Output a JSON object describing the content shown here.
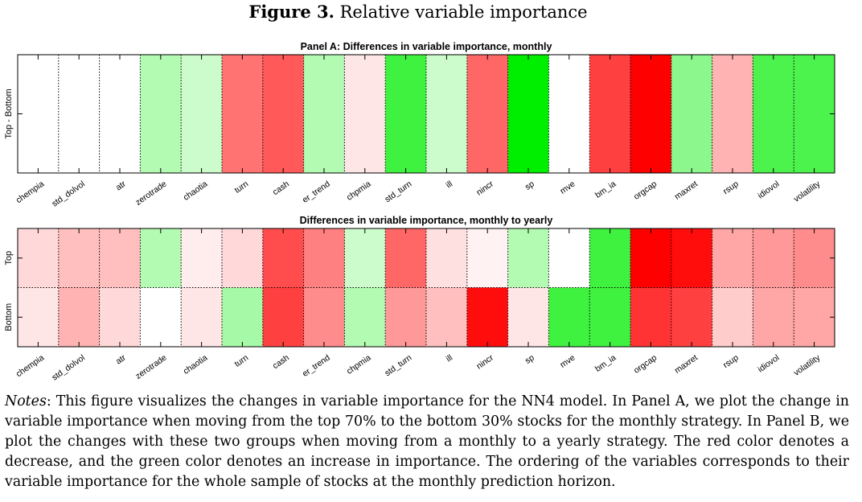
{
  "figure": {
    "label": "Figure 3.",
    "title": "Relative variable importance"
  },
  "notes": {
    "label": "Notes",
    "text": ": This figure visualizes the changes in variable importance for the NN4 model. In Panel A, we plot the change in variable importance when moving from the top 70% to the bottom 30% stocks for the monthly strategy. In Panel B, we plot the changes with these two groups when moving from a monthly to a yearly strategy. The red color denotes a decrease, and the green color denotes an increase in importance. The ordering of the variables corresponds to their variable importance for the whole sample of stocks at the monthly prediction horizon."
  },
  "colors": {
    "decrease": "#ff0000",
    "increase": "#00ee00",
    "neutral": "#ffffff"
  },
  "chart_data": [
    {
      "type": "heatmap",
      "title": "Panel A: Differences in variable importance, monthly",
      "categories": [
        "chempia",
        "std_dolvol",
        "atr",
        "zerotrade",
        "chaotia",
        "turn",
        "cash",
        "er_trend",
        "chpmia",
        "std_turn",
        "ill",
        "nincr",
        "sp",
        "mve",
        "bm_ia",
        "orgcap",
        "maxret",
        "rsup",
        "idiovol",
        "volatility"
      ],
      "rows": [
        "Top - Bottom"
      ],
      "values": [
        [
          0.0,
          0.0,
          0.0,
          0.3,
          0.2,
          -0.55,
          -0.65,
          0.3,
          -0.1,
          0.75,
          0.2,
          -0.6,
          1.0,
          0.0,
          -0.75,
          -1.0,
          0.45,
          -0.3,
          0.7,
          0.7
        ]
      ],
      "value_meaning": "negative = decrease (red), positive = increase (green)"
    },
    {
      "type": "heatmap",
      "title": "Differences in variable importance, monthly to yearly",
      "categories": [
        "chempia",
        "std_dolvol",
        "atr",
        "zerotrade",
        "chaotia",
        "turn",
        "cash",
        "er_trend",
        "chpmia",
        "std_turn",
        "ill",
        "nincr",
        "sp",
        "mve",
        "bm_ia",
        "orgcap",
        "maxret",
        "rsup",
        "idiovol",
        "volatility"
      ],
      "rows": [
        "Top",
        "Bottom"
      ],
      "values": [
        [
          -0.15,
          -0.25,
          -0.25,
          0.3,
          -0.07,
          -0.15,
          -0.7,
          -0.5,
          0.2,
          -0.6,
          -0.12,
          -0.05,
          0.3,
          0.0,
          0.75,
          -1.0,
          -0.95,
          -0.35,
          -0.4,
          -0.45
        ],
        [
          -0.1,
          -0.3,
          -0.15,
          0.0,
          -0.1,
          0.35,
          -0.75,
          -0.45,
          0.3,
          -0.4,
          -0.25,
          -0.95,
          -0.1,
          0.75,
          0.75,
          -0.8,
          -0.75,
          -0.2,
          -0.35,
          -0.35
        ]
      ],
      "value_meaning": "negative = decrease (red), positive = increase (green)"
    }
  ]
}
